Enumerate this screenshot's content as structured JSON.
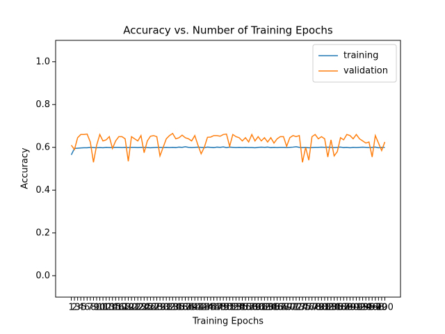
{
  "chart_data": {
    "type": "line",
    "title": "Accuracy vs. Number of Training Epochs",
    "x_label": "Training Epochs",
    "y_label": "Accuracy",
    "x": [
      1,
      2,
      3,
      4,
      5,
      6,
      7,
      8,
      9,
      10,
      11,
      12,
      13,
      14,
      15,
      16,
      17,
      18,
      19,
      20,
      21,
      22,
      23,
      24,
      25,
      26,
      27,
      28,
      29,
      30,
      31,
      32,
      33,
      34,
      35,
      36,
      37,
      38,
      39,
      40,
      41,
      42,
      43,
      44,
      45,
      46,
      47,
      48,
      49,
      50,
      51,
      52,
      53,
      54,
      55,
      56,
      57,
      58,
      59,
      60,
      61,
      62,
      63,
      64,
      65,
      66,
      67,
      68,
      69,
      70,
      71,
      72,
      73,
      74,
      75,
      76,
      77,
      78,
      79,
      80,
      81,
      82,
      83,
      84,
      85,
      86,
      87,
      88,
      89,
      90,
      91,
      92,
      93,
      94,
      95,
      96,
      97,
      98,
      99,
      100
    ],
    "series": [
      {
        "name": "training",
        "color": "#1f77b4",
        "values": [
          0.565,
          0.595,
          0.596,
          0.597,
          0.598,
          0.598,
          0.6,
          0.599,
          0.598,
          0.599,
          0.598,
          0.6,
          0.599,
          0.599,
          0.6,
          0.6,
          0.599,
          0.6,
          0.599,
          0.6,
          0.6,
          0.599,
          0.6,
          0.6,
          0.599,
          0.598,
          0.599,
          0.6,
          0.6,
          0.599,
          0.6,
          0.599,
          0.6,
          0.599,
          0.601,
          0.6,
          0.603,
          0.6,
          0.599,
          0.6,
          0.601,
          0.6,
          0.599,
          0.601,
          0.6,
          0.599,
          0.601,
          0.6,
          0.602,
          0.599,
          0.601,
          0.6,
          0.599,
          0.6,
          0.599,
          0.6,
          0.599,
          0.599,
          0.598,
          0.6,
          0.601,
          0.6,
          0.601,
          0.599,
          0.6,
          0.599,
          0.6,
          0.6,
          0.599,
          0.6,
          0.601,
          0.603,
          0.6,
          0.599,
          0.6,
          0.598,
          0.599,
          0.6,
          0.6,
          0.601,
          0.6,
          0.601,
          0.6,
          0.599,
          0.6,
          0.601,
          0.599,
          0.6,
          0.598,
          0.6,
          0.599,
          0.6,
          0.601,
          0.6,
          0.599,
          0.6,
          0.601,
          0.598,
          0.6,
          0.6
        ]
      },
      {
        "name": "validation",
        "color": "#ff7f0e",
        "values": [
          0.61,
          0.59,
          0.645,
          0.66,
          0.66,
          0.662,
          0.625,
          0.53,
          0.61,
          0.66,
          0.63,
          0.635,
          0.65,
          0.595,
          0.63,
          0.65,
          0.65,
          0.64,
          0.535,
          0.65,
          0.64,
          0.63,
          0.655,
          0.575,
          0.63,
          0.652,
          0.655,
          0.65,
          0.56,
          0.6,
          0.64,
          0.655,
          0.665,
          0.64,
          0.645,
          0.657,
          0.645,
          0.64,
          0.63,
          0.655,
          0.61,
          0.57,
          0.6,
          0.647,
          0.648,
          0.655,
          0.655,
          0.652,
          0.66,
          0.662,
          0.605,
          0.66,
          0.65,
          0.645,
          0.63,
          0.645,
          0.625,
          0.66,
          0.63,
          0.65,
          0.63,
          0.645,
          0.625,
          0.645,
          0.62,
          0.64,
          0.65,
          0.65,
          0.605,
          0.645,
          0.655,
          0.65,
          0.655,
          0.53,
          0.6,
          0.54,
          0.65,
          0.66,
          0.64,
          0.65,
          0.64,
          0.555,
          0.635,
          0.56,
          0.58,
          0.645,
          0.635,
          0.66,
          0.655,
          0.64,
          0.66,
          0.64,
          0.63,
          0.62,
          0.625,
          0.555,
          0.655,
          0.62,
          0.585,
          0.625
        ]
      }
    ],
    "xlim": [
      -3.95,
      104.95
    ],
    "ylim": [
      -0.1,
      1.1
    ],
    "xticks": [
      1,
      2,
      3,
      4,
      5,
      6,
      7,
      8,
      9,
      10,
      11,
      12,
      13,
      14,
      15,
      16,
      17,
      18,
      19,
      20,
      21,
      22,
      23,
      24,
      25,
      26,
      27,
      28,
      29,
      30,
      31,
      32,
      33,
      34,
      35,
      36,
      37,
      38,
      39,
      40,
      41,
      42,
      43,
      44,
      45,
      46,
      47,
      48,
      49,
      50,
      51,
      52,
      53,
      54,
      55,
      56,
      57,
      58,
      59,
      60,
      61,
      62,
      63,
      64,
      65,
      66,
      67,
      68,
      69,
      70,
      71,
      72,
      73,
      74,
      75,
      76,
      77,
      78,
      79,
      80,
      81,
      82,
      83,
      84,
      85,
      86,
      87,
      88,
      89,
      90,
      91,
      92,
      93,
      94,
      95,
      96,
      97,
      98,
      99,
      100
    ],
    "yticks": [
      {
        "value": 0,
        "label": "0.0"
      },
      {
        "value": 0.2,
        "label": "0.2"
      },
      {
        "value": 0.4,
        "label": "0.4"
      },
      {
        "value": 0.6,
        "label": "0.6"
      },
      {
        "value": 0.8,
        "label": "0.8"
      },
      {
        "value": 1,
        "label": "1.0"
      }
    ],
    "legend": "upper right"
  }
}
